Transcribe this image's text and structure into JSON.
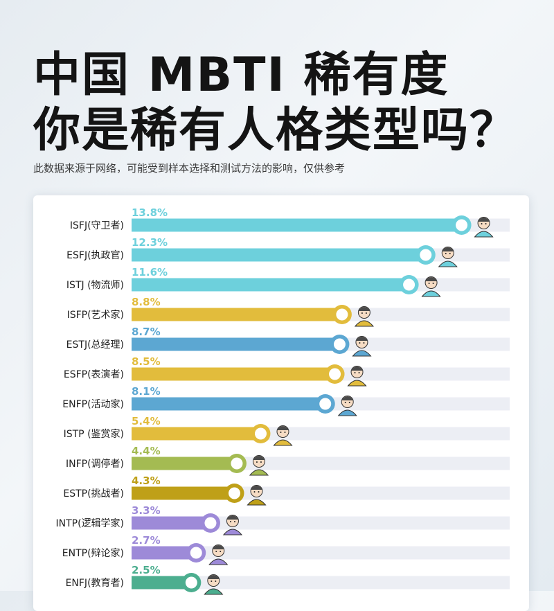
{
  "header": {
    "title_line1": "中国 MBTI 稀有度",
    "title_line2": "你是稀有人格类型吗？",
    "subtitle": "此数据来源于网络，可能受到样本选择和测试方法的影响，仅供参考"
  },
  "chart_data": {
    "type": "bar",
    "orientation": "horizontal",
    "title": "中国 MBTI 稀有度",
    "xlim": [
      0,
      15
    ],
    "grid": false,
    "categories": [
      "ISFJ(守卫者)",
      "ESFJ(执政官)",
      "ISTJ (物流师)",
      "ISFP(艺术家)",
      "ESTJ(总经理)",
      "ESFP(表演者)",
      "ENFP(活动家)",
      "ISTP (鉴赏家)",
      "INFP(调停者)",
      "ESTP(挑战者)",
      "INTP(逻辑学家)",
      "ENTP(辩论家)",
      "ENFJ(教育者)"
    ],
    "values": [
      13.8,
      12.3,
      11.6,
      8.8,
      8.7,
      8.5,
      8.1,
      5.4,
      4.4,
      4.3,
      3.3,
      2.7,
      2.5
    ],
    "value_labels": [
      "13.8%",
      "12.3%",
      "11.6%",
      "8.8%",
      "8.7%",
      "8.5%",
      "8.1%",
      "5.4%",
      "4.4%",
      "4.3%",
      "3.3%",
      "2.7%",
      "2.5%"
    ],
    "colors": [
      "#6dd0dc",
      "#6dd0dc",
      "#6dd0dc",
      "#e2bc3c",
      "#5ca7d2",
      "#e2bc3c",
      "#5ca7d2",
      "#e2bc3c",
      "#a4bb52",
      "#bfa018",
      "#9d8ad8",
      "#9d8ad8",
      "#4cae8f"
    ],
    "track_color": "#eceef4",
    "avatar_icons": [
      "guard-avatar-icon",
      "consul-avatar-icon",
      "logistician-avatar-icon",
      "artist-avatar-icon",
      "executive-avatar-icon",
      "entertainer-avatar-icon",
      "campaigner-avatar-icon",
      "virtuoso-avatar-icon",
      "mediator-avatar-icon",
      "entrepreneur-avatar-icon",
      "logician-avatar-icon",
      "debater-avatar-icon",
      "protagonist-avatar-icon"
    ]
  }
}
